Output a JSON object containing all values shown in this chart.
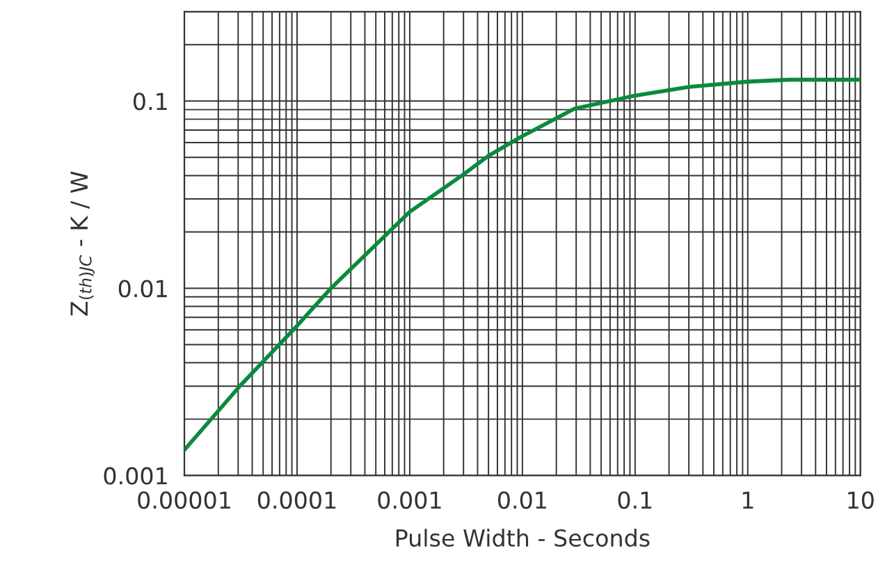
{
  "chart_data": {
    "type": "line",
    "xlabel": "Pulse Width - Seconds",
    "ylabel": "Z$_{(th)JC}$ - K / W",
    "log": "xy",
    "grid": true,
    "xlim": [
      1e-05,
      10
    ],
    "ylim": [
      0.001,
      0.3
    ],
    "xticks": [
      {
        "value": 1e-05,
        "label": "0.00001"
      },
      {
        "value": 0.0001,
        "label": "0.0001"
      },
      {
        "value": 0.001,
        "label": "0.001"
      },
      {
        "value": 0.01,
        "label": "0.01"
      },
      {
        "value": 0.1,
        "label": "0.1"
      },
      {
        "value": 1,
        "label": "1"
      },
      {
        "value": 10,
        "label": "10"
      }
    ],
    "yticks": [
      {
        "value": 0.001,
        "label": "0.001"
      },
      {
        "value": 0.01,
        "label": "0.01"
      },
      {
        "value": 0.1,
        "label": "0.1"
      }
    ],
    "series": [
      {
        "color": "#0b8a3e",
        "line_style": "solid",
        "x": [
          1e-05,
          3.1e-05,
          0.0001,
          0.0002,
          0.001,
          0.0029,
          0.005,
          0.01,
          0.029,
          0.1,
          0.3,
          1,
          2.3,
          10
        ],
        "values": [
          0.00137,
          0.003,
          0.0063,
          0.01,
          0.0256,
          0.04,
          0.051,
          0.065,
          0.091,
          0.107,
          0.119,
          0.127,
          0.13,
          0.13
        ]
      }
    ]
  }
}
